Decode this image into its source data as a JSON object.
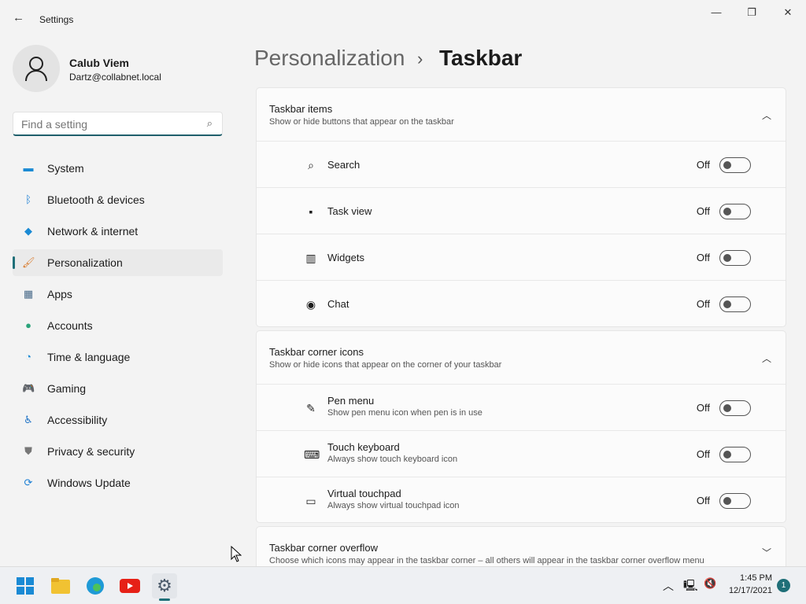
{
  "window": {
    "title": "Settings",
    "back": "←",
    "minimize": "—",
    "maximize": "❐",
    "close": "✕"
  },
  "user": {
    "name": "Calub Viem",
    "email": "Dartz@collabnet.local"
  },
  "search": {
    "placeholder": "Find a setting",
    "icon": "search-icon"
  },
  "nav": [
    {
      "label": "System",
      "icon": "monitor-icon",
      "color": "#1a8ad4"
    },
    {
      "label": "Bluetooth & devices",
      "icon": "bluetooth-icon",
      "color": "#1a7ed4"
    },
    {
      "label": "Network & internet",
      "icon": "wifi-icon",
      "color": "#1a8ad4"
    },
    {
      "label": "Personalization",
      "icon": "brush-icon",
      "color": "#d97a2b",
      "active": true
    },
    {
      "label": "Apps",
      "icon": "apps-icon",
      "color": "#4a6b8a"
    },
    {
      "label": "Accounts",
      "icon": "person-icon",
      "color": "#2aa37a"
    },
    {
      "label": "Time & language",
      "icon": "clock-globe-icon",
      "color": "#1a8ad4"
    },
    {
      "label": "Gaming",
      "icon": "gamepad-icon",
      "color": "#777"
    },
    {
      "label": "Accessibility",
      "icon": "accessibility-icon",
      "color": "#1a6fc4"
    },
    {
      "label": "Privacy & security",
      "icon": "shield-icon",
      "color": "#777"
    },
    {
      "label": "Windows Update",
      "icon": "update-icon",
      "color": "#1a7ed4"
    }
  ],
  "breadcrumb": {
    "parent": "Personalization",
    "separator": "›",
    "current": "Taskbar"
  },
  "sections": [
    {
      "title": "Taskbar items",
      "subtitle": "Show or hide buttons that appear on the taskbar",
      "expanded": true,
      "items": [
        {
          "label": "Search",
          "icon": "search-icon",
          "state": "Off"
        },
        {
          "label": "Task view",
          "icon": "task-view-icon",
          "state": "Off"
        },
        {
          "label": "Widgets",
          "icon": "widgets-icon",
          "state": "Off"
        },
        {
          "label": "Chat",
          "icon": "chat-icon",
          "state": "Off"
        }
      ]
    },
    {
      "title": "Taskbar corner icons",
      "subtitle": "Show or hide icons that appear on the corner of your taskbar",
      "expanded": true,
      "items": [
        {
          "label": "Pen menu",
          "desc": "Show pen menu icon when pen is in use",
          "icon": "pen-icon",
          "state": "Off"
        },
        {
          "label": "Touch keyboard",
          "desc": "Always show touch keyboard icon",
          "icon": "keyboard-icon",
          "state": "Off"
        },
        {
          "label": "Virtual touchpad",
          "desc": "Always show virtual touchpad icon",
          "icon": "touchpad-icon",
          "state": "Off"
        }
      ]
    },
    {
      "title": "Taskbar corner overflow",
      "subtitle": "Choose which icons may appear in the taskbar corner – all others will appear in the taskbar corner overflow menu",
      "expanded": false
    }
  ],
  "taskbar": {
    "apps": [
      "start-icon",
      "file-explorer-icon",
      "edge-icon",
      "youtube-icon",
      "settings-icon"
    ],
    "time": "1:45 PM",
    "date": "12/17/2021",
    "notifications": "1"
  }
}
